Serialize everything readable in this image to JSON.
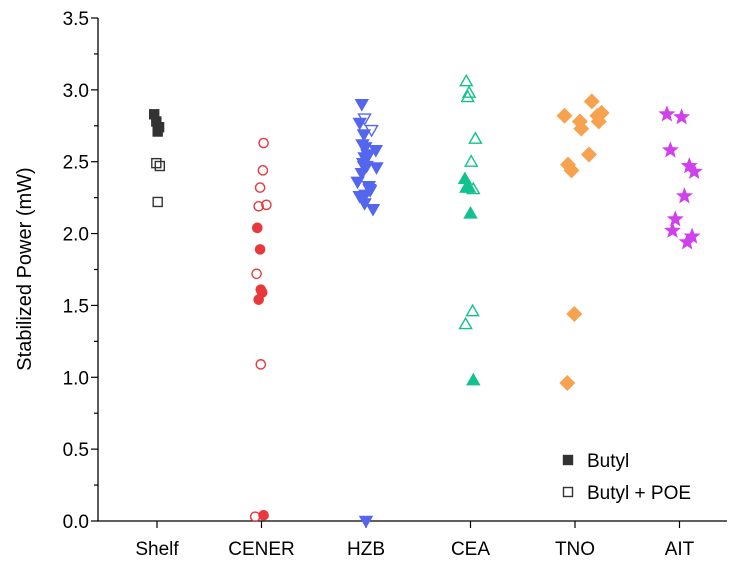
{
  "chart_data": {
    "type": "scatter",
    "title": "",
    "xlabel": "",
    "ylabel": "Stabilized Power (mW)",
    "ylim": [
      0,
      3.5
    ],
    "yticks": [
      "0.0",
      "0.5",
      "1.0",
      "1.5",
      "2.0",
      "2.5",
      "3.0",
      "3.5"
    ],
    "grid": false,
    "legend_position": "bottom-right",
    "categories": [
      "Shelf",
      "CENER",
      "HZB",
      "CEA",
      "TNO",
      "AIT"
    ],
    "group_styles": [
      {
        "category": "Shelf",
        "marker": "square",
        "color": "#333333"
      },
      {
        "category": "CENER",
        "marker": "circle",
        "color": "#e8383d"
      },
      {
        "category": "HZB",
        "marker": "triangle-down",
        "color": "#5566ee"
      },
      {
        "category": "CEA",
        "marker": "triangle-up",
        "color": "#11c28e"
      },
      {
        "category": "TNO",
        "marker": "diamond",
        "color": "#f7a24f"
      },
      {
        "category": "AIT",
        "marker": "star",
        "color": "#d040ec"
      }
    ],
    "legend": [
      {
        "label": "Butyl",
        "marker": "square",
        "filled": true
      },
      {
        "label": "Butyl + POE",
        "marker": "square",
        "filled": false
      }
    ],
    "series": [
      {
        "name": "Butyl",
        "filled": true,
        "points": [
          {
            "category": "Shelf",
            "offset": -0.2,
            "y": 2.83
          },
          {
            "category": "Shelf",
            "offset": -0.05,
            "y": 2.78
          },
          {
            "category": "Shelf",
            "offset": 0.15,
            "y": 2.74
          },
          {
            "category": "Shelf",
            "offset": 0.05,
            "y": 2.71
          },
          {
            "category": "CENER",
            "offset": -0.3,
            "y": 2.04
          },
          {
            "category": "CENER",
            "offset": -0.1,
            "y": 1.89
          },
          {
            "category": "CENER",
            "offset": -0.05,
            "y": 1.61
          },
          {
            "category": "CENER",
            "offset": 0.05,
            "y": 1.59
          },
          {
            "category": "CENER",
            "offset": -0.2,
            "y": 1.54
          },
          {
            "category": "CENER",
            "offset": 0.15,
            "y": 0.04
          },
          {
            "category": "HZB",
            "offset": -0.3,
            "y": 2.9
          },
          {
            "category": "HZB",
            "offset": -0.45,
            "y": 2.77
          },
          {
            "category": "HZB",
            "offset": -0.15,
            "y": 2.69
          },
          {
            "category": "HZB",
            "offset": -0.25,
            "y": 2.62
          },
          {
            "category": "HZB",
            "offset": -0.05,
            "y": 2.6
          },
          {
            "category": "HZB",
            "offset": 0.1,
            "y": 2.55
          },
          {
            "category": "HZB",
            "offset": 0.7,
            "y": 2.58
          },
          {
            "category": "HZB",
            "offset": -0.1,
            "y": 2.53
          },
          {
            "category": "HZB",
            "offset": -0.2,
            "y": 2.49
          },
          {
            "category": "HZB",
            "offset": 0.05,
            "y": 2.47
          },
          {
            "category": "HZB",
            "offset": 0.75,
            "y": 2.46
          },
          {
            "category": "HZB",
            "offset": -0.3,
            "y": 2.42
          },
          {
            "category": "HZB",
            "offset": -0.6,
            "y": 2.36
          },
          {
            "category": "HZB",
            "offset": 0.2,
            "y": 2.33
          },
          {
            "category": "HZB",
            "offset": 0.3,
            "y": 2.3
          },
          {
            "category": "HZB",
            "offset": -0.05,
            "y": 2.27
          },
          {
            "category": "HZB",
            "offset": -0.45,
            "y": 2.26
          },
          {
            "category": "HZB",
            "offset": -0.1,
            "y": 2.21
          },
          {
            "category": "HZB",
            "offset": 0.5,
            "y": 2.17
          },
          {
            "category": "HZB",
            "offset": 0.0,
            "y": 0.0
          },
          {
            "category": "CEA",
            "offset": -0.4,
            "y": 2.38
          },
          {
            "category": "CEA",
            "offset": -0.3,
            "y": 2.32
          },
          {
            "category": "CEA",
            "offset": -0.1,
            "y": 2.32
          },
          {
            "category": "CEA",
            "offset": 0.0,
            "y": 2.14
          },
          {
            "category": "CEA",
            "offset": 0.2,
            "y": 0.98
          },
          {
            "category": "TNO",
            "offset": -0.75,
            "y": 2.82
          },
          {
            "category": "TNO",
            "offset": 1.2,
            "y": 2.92
          },
          {
            "category": "TNO",
            "offset": 1.9,
            "y": 2.84
          },
          {
            "category": "TNO",
            "offset": 1.6,
            "y": 2.82
          },
          {
            "category": "TNO",
            "offset": 0.35,
            "y": 2.78
          },
          {
            "category": "TNO",
            "offset": 1.7,
            "y": 2.78
          },
          {
            "category": "TNO",
            "offset": 0.45,
            "y": 2.73
          },
          {
            "category": "TNO",
            "offset": 1.0,
            "y": 2.55
          },
          {
            "category": "TNO",
            "offset": -0.5,
            "y": 2.48
          },
          {
            "category": "TNO",
            "offset": -0.25,
            "y": 2.44
          },
          {
            "category": "TNO",
            "offset": -0.05,
            "y": 1.44
          },
          {
            "category": "TNO",
            "offset": -0.55,
            "y": 0.96
          },
          {
            "category": "AIT",
            "offset": -0.9,
            "y": 2.83
          },
          {
            "category": "AIT",
            "offset": 0.15,
            "y": 2.81
          },
          {
            "category": "AIT",
            "offset": -0.65,
            "y": 2.58
          },
          {
            "category": "AIT",
            "offset": 0.7,
            "y": 2.47
          },
          {
            "category": "AIT",
            "offset": 1.05,
            "y": 2.43
          },
          {
            "category": "AIT",
            "offset": 0.35,
            "y": 2.26
          },
          {
            "category": "AIT",
            "offset": -0.3,
            "y": 2.1
          },
          {
            "category": "AIT",
            "offset": -0.5,
            "y": 2.02
          },
          {
            "category": "AIT",
            "offset": 0.9,
            "y": 1.98
          },
          {
            "category": "AIT",
            "offset": 0.55,
            "y": 1.94
          }
        ]
      },
      {
        "name": "Butyl + POE",
        "filled": false,
        "points": [
          {
            "category": "Shelf",
            "offset": -0.05,
            "y": 2.49
          },
          {
            "category": "Shelf",
            "offset": 0.2,
            "y": 2.47
          },
          {
            "category": "Shelf",
            "offset": 0.05,
            "y": 2.22
          },
          {
            "category": "CENER",
            "offset": 0.15,
            "y": 2.63
          },
          {
            "category": "CENER",
            "offset": 0.1,
            "y": 2.44
          },
          {
            "category": "CENER",
            "offset": -0.1,
            "y": 2.32
          },
          {
            "category": "CENER",
            "offset": -0.2,
            "y": 2.19
          },
          {
            "category": "CENER",
            "offset": 0.35,
            "y": 2.2
          },
          {
            "category": "CENER",
            "offset": -0.35,
            "y": 1.72
          },
          {
            "category": "CENER",
            "offset": -0.05,
            "y": 1.09
          },
          {
            "category": "CENER",
            "offset": -0.45,
            "y": 0.03
          },
          {
            "category": "HZB",
            "offset": -0.1,
            "y": 2.8
          },
          {
            "category": "HZB",
            "offset": 0.4,
            "y": 2.72
          },
          {
            "category": "HZB",
            "offset": 0.2,
            "y": 2.55
          },
          {
            "category": "HZB",
            "offset": -0.15,
            "y": 2.47
          },
          {
            "category": "HZB",
            "offset": 0.25,
            "y": 2.31
          },
          {
            "category": "CEA",
            "offset": -0.3,
            "y": 3.06
          },
          {
            "category": "CEA",
            "offset": -0.1,
            "y": 2.98
          },
          {
            "category": "CEA",
            "offset": -0.2,
            "y": 2.95
          },
          {
            "category": "CEA",
            "offset": 0.35,
            "y": 2.66
          },
          {
            "category": "CEA",
            "offset": 0.05,
            "y": 2.5
          },
          {
            "category": "CEA",
            "offset": 0.2,
            "y": 2.31
          },
          {
            "category": "CEA",
            "offset": 0.15,
            "y": 1.46
          },
          {
            "category": "CEA",
            "offset": -0.35,
            "y": 1.37
          }
        ]
      }
    ]
  }
}
